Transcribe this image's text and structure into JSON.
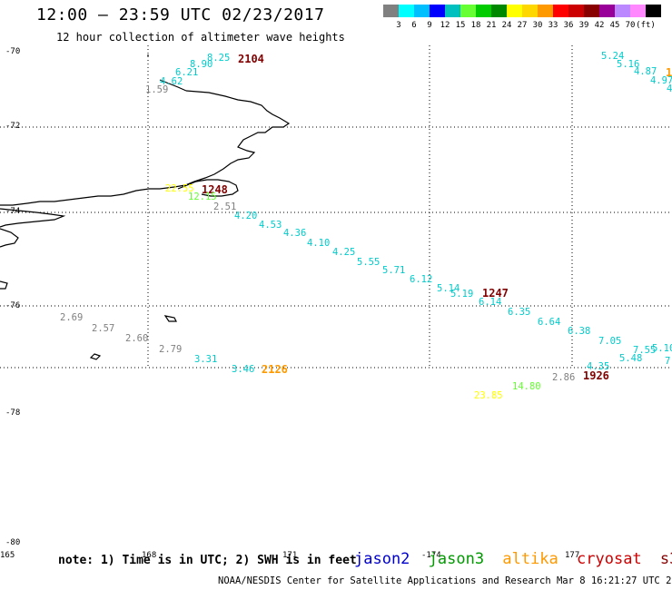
{
  "header": {
    "title": "12:00 – 23:59 UTC 02/23/2017",
    "subtitle": "12 hour collection of altimeter wave heights"
  },
  "colorbar": {
    "colors": [
      "#808080",
      "#00ffff",
      "#00bfff",
      "#0000ff",
      "#00bfbf",
      "#66ff33",
      "#00cc00",
      "#008800",
      "#ffff00",
      "#ffd700",
      "#ff9900",
      "#ff0000",
      "#cc0000",
      "#880000",
      "#990099",
      "#bb88ff",
      "#ff88ff",
      "#000000"
    ],
    "labels": [
      "3",
      "6",
      "9",
      "12",
      "15",
      "18",
      "21",
      "24",
      "27",
      "30",
      "33",
      "36",
      "39",
      "42",
      "45",
      "70",
      "(ft)"
    ]
  },
  "axes": {
    "lat_labels": [
      "-70",
      "-72",
      "-74",
      "-76",
      "-78",
      "-80"
    ],
    "lon_labels": [
      "165",
      "168",
      "171",
      "-174",
      "177"
    ]
  },
  "observations": [
    {
      "text": "8.25",
      "color": "#00cccc"
    },
    {
      "text": "8.90",
      "color": "#00cccc"
    },
    {
      "text": "6.21",
      "color": "#00cccc"
    },
    {
      "text": "4.62",
      "color": "#00cccc"
    },
    {
      "text": "1.59",
      "color": "#808080"
    },
    {
      "text": "2104",
      "color": "#800000",
      "bold": true
    },
    {
      "text": "22.55",
      "color": "#ffff00"
    },
    {
      "text": "1248",
      "color": "#800000",
      "bold": true
    },
    {
      "text": "12.15",
      "color": "#66ff33"
    },
    {
      "text": "2.51",
      "color": "#808080"
    },
    {
      "text": "4.20",
      "color": "#00cccc"
    },
    {
      "text": "4.53",
      "color": "#00cccc"
    },
    {
      "text": "4.36",
      "color": "#00cccc"
    },
    {
      "text": "4.10",
      "color": "#00cccc"
    },
    {
      "text": "4.25",
      "color": "#00cccc"
    },
    {
      "text": "5.55",
      "color": "#00cccc"
    },
    {
      "text": "5.71",
      "color": "#00cccc"
    },
    {
      "text": "6.12",
      "color": "#00cccc"
    },
    {
      "text": "5.14",
      "color": "#00cccc"
    },
    {
      "text": "5.19",
      "color": "#00cccc"
    },
    {
      "text": "1247",
      "color": "#800000",
      "bold": true
    },
    {
      "text": "6.14",
      "color": "#00cccc"
    },
    {
      "text": "6.35",
      "color": "#00cccc"
    },
    {
      "text": "6.64",
      "color": "#00cccc"
    },
    {
      "text": "6.38",
      "color": "#00cccc"
    },
    {
      "text": "7.05",
      "color": "#00cccc"
    },
    {
      "text": "7.55",
      "color": "#00cccc"
    },
    {
      "text": "5.10",
      "color": "#00cccc"
    },
    {
      "text": "5.48",
      "color": "#00cccc"
    },
    {
      "text": "7.",
      "color": "#00cccc"
    },
    {
      "text": "4.35",
      "color": "#00cccc"
    },
    {
      "text": "2.86",
      "color": "#808080"
    },
    {
      "text": "1926",
      "color": "#800000",
      "bold": true
    },
    {
      "text": "14.80",
      "color": "#66ff33"
    },
    {
      "text": "23.85",
      "color": "#ffff00"
    },
    {
      "text": "2.69",
      "color": "#808080"
    },
    {
      "text": "2.57",
      "color": "#808080"
    },
    {
      "text": "2.60",
      "color": "#808080"
    },
    {
      "text": "2.79",
      "color": "#808080"
    },
    {
      "text": "3.31",
      "color": "#00cccc"
    },
    {
      "text": "3.46",
      "color": "#00cccc"
    },
    {
      "text": "2126",
      "color": "#ff9900",
      "bold": true
    },
    {
      "text": "5.24",
      "color": "#00cccc"
    },
    {
      "text": "5.16",
      "color": "#00cccc"
    },
    {
      "text": "4.87",
      "color": "#00cccc"
    },
    {
      "text": "4.97",
      "color": "#00cccc"
    },
    {
      "text": "4",
      "color": "#00cccc"
    },
    {
      "text": "1",
      "color": "#ff9900",
      "bold": true
    }
  ],
  "footer": {
    "note": "note: 1) Time is in UTC; 2) SWH is in feet",
    "satellites": [
      {
        "name": "jason2",
        "color": "#0000cc"
      },
      {
        "name": "jason3",
        "color": "#009900"
      },
      {
        "name": "altika",
        "color": "#ff9900"
      },
      {
        "name": "cryosat",
        "color": "#cc0000"
      },
      {
        "name": "s3a",
        "color": "#880000"
      }
    ],
    "credit": "NOAA/NESDIS Center for Satellite Applications and Research   Mar  8 16:21:27 UTC 2017"
  }
}
